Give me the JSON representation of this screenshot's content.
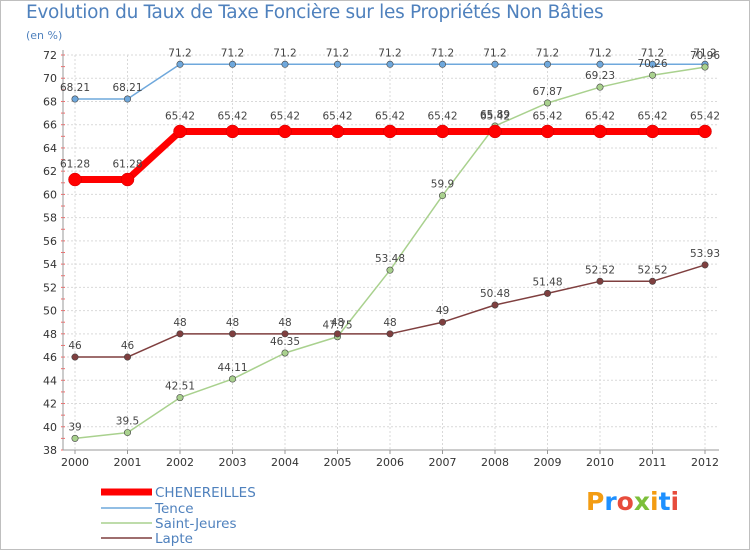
{
  "title": "Evolution du Taux de Taxe Foncière sur les Propriétés Non Bâties",
  "unit": "(en %)",
  "brand": {
    "letters": [
      "P",
      "r",
      "o",
      "x",
      "i",
      "t",
      "i"
    ],
    "colors": [
      "#f39c12",
      "#1e90ff",
      "#e74c3c",
      "#7cbf3a",
      "#f39c12",
      "#1e90ff",
      "#e74c3c"
    ]
  },
  "chart_data": {
    "type": "line",
    "categories": [
      "2000",
      "2001",
      "2002",
      "2003",
      "2004",
      "2005",
      "2006",
      "2007",
      "2008",
      "2009",
      "2010",
      "2011",
      "2012"
    ],
    "ylim": [
      38,
      72
    ],
    "yticks": [
      38,
      40,
      42,
      44,
      46,
      48,
      50,
      52,
      54,
      56,
      58,
      60,
      62,
      64,
      66,
      68,
      70,
      72
    ],
    "series": [
      {
        "name": "CHENEREILLES",
        "color": "#ff0000",
        "width": 7,
        "values": [
          61.28,
          61.28,
          65.42,
          65.42,
          65.42,
          65.42,
          65.42,
          65.42,
          65.42,
          65.42,
          65.42,
          65.42,
          65.42
        ],
        "labels": [
          "61.28",
          "61.28",
          "65.42",
          "65.42",
          "65.42",
          "65.42",
          "65.42",
          "65.42",
          "65.42",
          "65.42",
          "65.42",
          "65.42",
          "65.42"
        ]
      },
      {
        "name": "Tence",
        "color": "#6fa8dc",
        "width": 1.5,
        "values": [
          68.21,
          68.21,
          71.2,
          71.2,
          71.2,
          71.2,
          71.2,
          71.2,
          71.2,
          71.2,
          71.2,
          71.2,
          71.2
        ],
        "labels": [
          "68.21",
          "68.21",
          "71.2",
          "71.2",
          "71.2",
          "71.2",
          "71.2",
          "71.2",
          "71.2",
          "71.2",
          "71.2",
          "71.2",
          "71.2"
        ]
      },
      {
        "name": "Saint-Jeures",
        "color": "#a9d18e",
        "width": 1.5,
        "values": [
          39,
          39.5,
          42.51,
          44.11,
          46.35,
          47.75,
          53.48,
          59.9,
          65.89,
          67.87,
          69.23,
          70.26,
          70.96
        ],
        "labels": [
          "39",
          "39.5",
          "42.51",
          "44.11",
          "46.35",
          "47.75",
          "53.48",
          "59.9",
          "65.89",
          "67.87",
          "69.23",
          "70.26",
          "70.96"
        ]
      },
      {
        "name": "Lapte",
        "color": "#7f3f3f",
        "width": 1.5,
        "values": [
          46,
          46,
          48,
          48,
          48,
          48,
          48,
          49,
          50.48,
          51.48,
          52.52,
          52.52,
          53.93
        ],
        "labels": [
          "46",
          "46",
          "48",
          "48",
          "48",
          "48",
          "48",
          "49",
          "50.48",
          "51.48",
          "52.52",
          "52.52",
          "53.93"
        ]
      }
    ]
  }
}
